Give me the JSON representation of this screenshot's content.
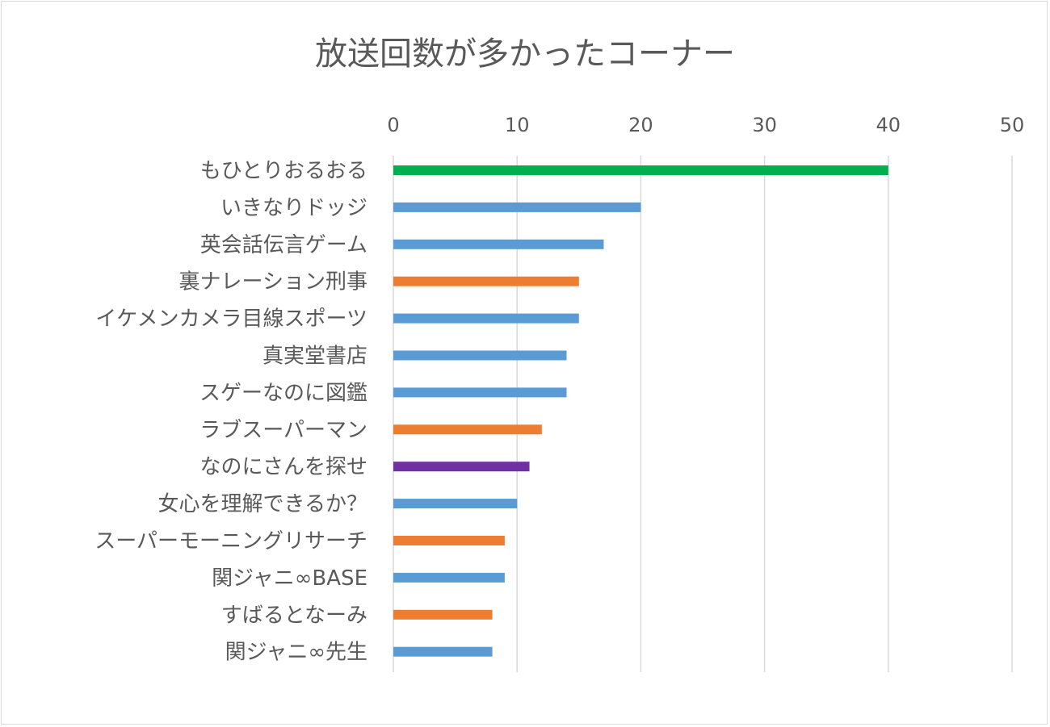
{
  "chart_data": {
    "type": "bar",
    "orientation": "horizontal",
    "title": "放送回数が多かったコーナー",
    "xlabel": "",
    "ylabel": "",
    "xlim": [
      0,
      50
    ],
    "x_ticks": [
      "0",
      "10",
      "20",
      "30",
      "40",
      "50"
    ],
    "x_axis_position": "top",
    "grid": true,
    "categories": [
      "もひとりおるおる",
      "いきなりドッジ",
      "英会話伝言ゲーム",
      "裏ナレーション刑事",
      "イケメンカメラ目線スポーツ",
      "真実堂書店",
      "スゲーなのに図鑑",
      "ラブスーパーマン",
      "なのにさんを探せ",
      "女心を理解できるか？",
      "スーパーモーニングリサーチ",
      "関ジャニ∞BASE",
      "すばるとなーみ",
      "関ジャニ∞先生"
    ],
    "values": [
      40,
      20,
      17,
      15,
      15,
      14,
      14,
      12,
      11,
      10,
      9,
      9,
      8,
      8
    ],
    "colors": [
      "#00b050",
      "#5b9bd5",
      "#5b9bd5",
      "#ed7d31",
      "#5b9bd5",
      "#5b9bd5",
      "#5b9bd5",
      "#ed7d31",
      "#7030a0",
      "#5b9bd5",
      "#ed7d31",
      "#5b9bd5",
      "#ed7d31",
      "#5b9bd5"
    ]
  }
}
